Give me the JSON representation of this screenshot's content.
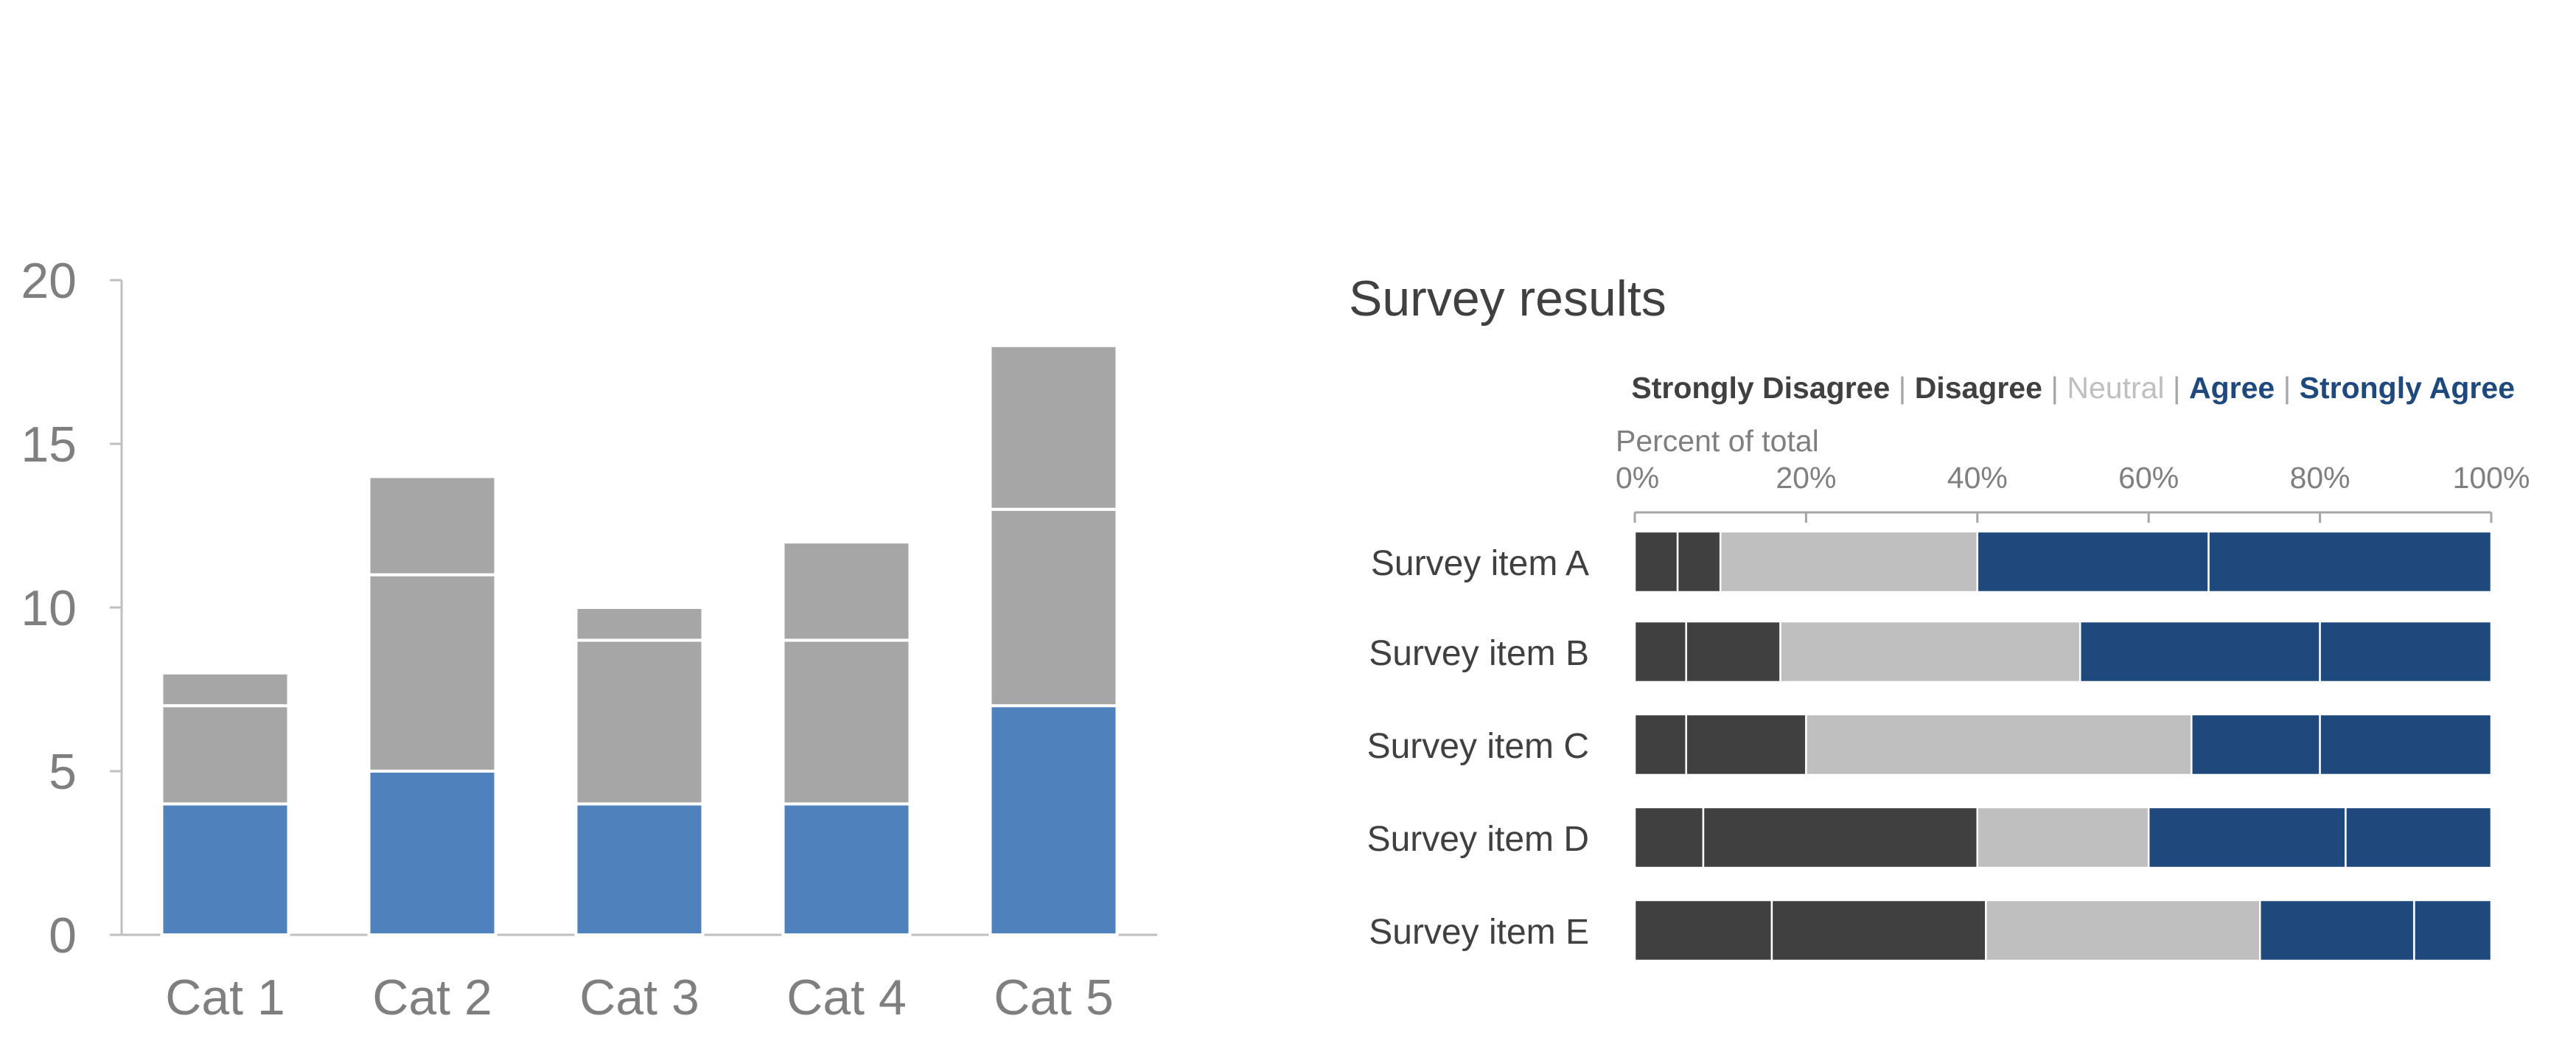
{
  "chart_data": [
    {
      "type": "bar",
      "stacked": true,
      "title": "",
      "xlabel": "",
      "ylabel": "",
      "categories": [
        "Cat 1",
        "Cat 2",
        "Cat 3",
        "Cat 4",
        "Cat 5"
      ],
      "series": [
        {
          "values": [
            4,
            5,
            4,
            4,
            7
          ],
          "color": "#4f81bd"
        },
        {
          "values": [
            3,
            6,
            5,
            5,
            6
          ],
          "color": "#a6a6a6"
        },
        {
          "values": [
            1,
            3,
            1,
            3,
            5
          ],
          "color": "#a6a6a6"
        }
      ],
      "ylim": [
        0,
        20
      ],
      "yticks": [
        "0",
        "5",
        "10",
        "15",
        "20"
      ],
      "grid": false,
      "legend": "none"
    },
    {
      "type": "bar",
      "orientation": "horizontal",
      "stacked": true,
      "title": "Survey results",
      "xlabel": "Percent of total",
      "categories": [
        "Survey item A",
        "Survey item B",
        "Survey item C",
        "Survey item D",
        "Survey item E"
      ],
      "series": [
        {
          "name": "Strongly Disagree",
          "values": [
            5,
            6,
            6,
            8,
            16
          ],
          "color": "#404040"
        },
        {
          "name": "Disagree",
          "values": [
            5,
            11,
            14,
            32,
            25
          ],
          "color": "#404040"
        },
        {
          "name": "Neutral",
          "values": [
            30,
            35,
            45,
            20,
            32
          ],
          "color": "#bfbfbf"
        },
        {
          "name": "Agree",
          "values": [
            27,
            28,
            15,
            23,
            18
          ],
          "color": "#1f497d"
        },
        {
          "name": "Strongly Agree",
          "values": [
            33,
            20,
            20,
            17,
            9
          ],
          "color": "#1f497d"
        }
      ],
      "xlim": [
        0,
        100
      ],
      "xticks": [
        "0%",
        "20%",
        "40%",
        "60%",
        "80%",
        "100%"
      ],
      "legend": "top",
      "legend_separator": "|",
      "legend_colors": {
        "Strongly Disagree": "#404040",
        "Disagree": "#404040",
        "Neutral": "#bfbfbf",
        "Agree": "#1f497d",
        "Strongly Agree": "#1f497d"
      },
      "grid": false
    }
  ]
}
